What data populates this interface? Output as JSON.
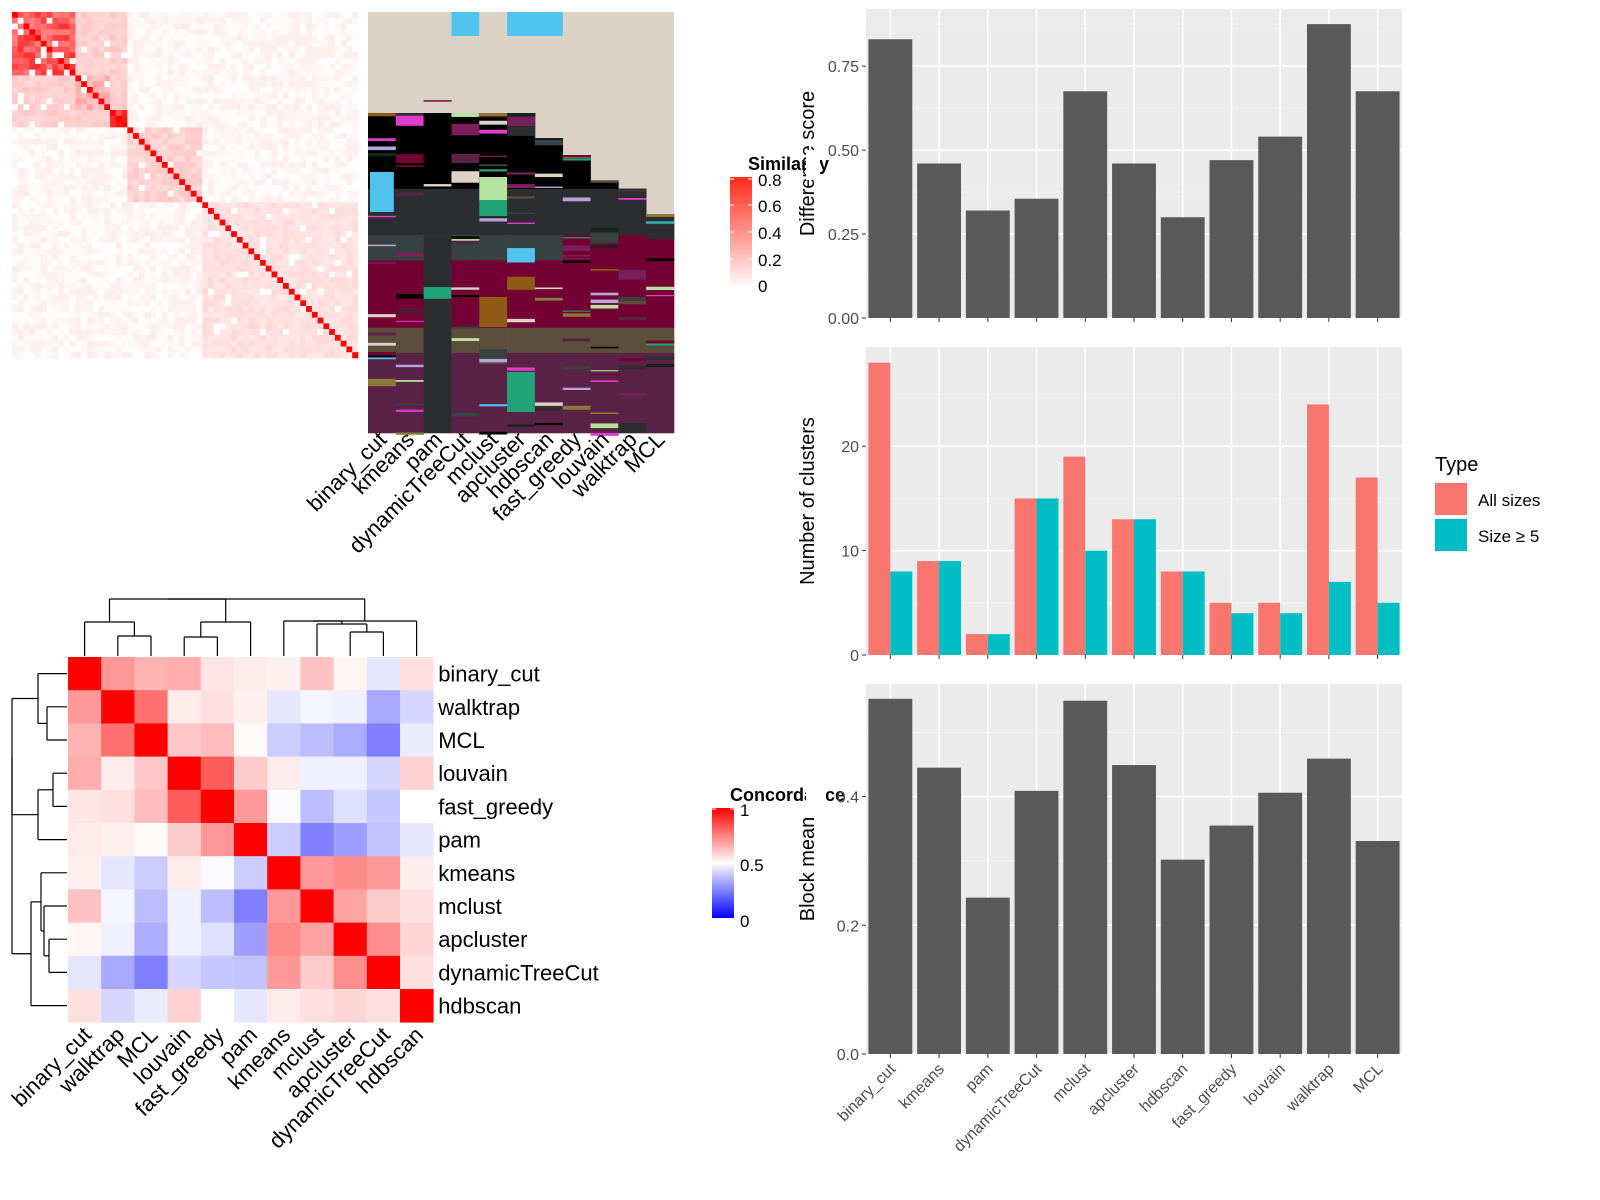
{
  "similarity_legend": {
    "title": "Similarity",
    "ticks": [
      "0.8",
      "0.6",
      "0.4",
      "0.2",
      "0"
    ]
  },
  "concordance_legend": {
    "title": "Concordance",
    "ticks": [
      "1",
      "0.5",
      "0"
    ]
  },
  "chart_data": [
    {
      "type": "heatmap",
      "panel": "similarity-matrix",
      "note_values": "consensus similarity between items, shown as red intensity 0-0.8",
      "legend_title": "Similarity",
      "value_range": [
        0,
        0.8
      ],
      "colors": {
        "low": "#ffffff",
        "high": "#ff0000"
      },
      "blocks": [
        {
          "start": 0.0,
          "end": 0.18,
          "value": 0.55
        },
        {
          "start": 0.18,
          "end": 0.28,
          "value": 0.25
        },
        {
          "start": 0.28,
          "end": 0.33,
          "value": 0.7
        },
        {
          "start": 0.33,
          "end": 0.55,
          "value": 0.15
        },
        {
          "start": 0.55,
          "end": 1.0,
          "value": 0.1
        }
      ]
    },
    {
      "type": "heatmap",
      "panel": "cluster-assignment",
      "methods": [
        "binary_cut",
        "kmeans",
        "pam",
        "dynamicTreeCut",
        "mclust",
        "apcluster",
        "hdbscan",
        "fast_greedy",
        "louvain",
        "walktrap",
        "MCL"
      ]
    },
    {
      "type": "heatmap",
      "panel": "concordance",
      "legend_title": "Concordance",
      "value_range": [
        0,
        1
      ],
      "colors": {
        "low": "#0000ff",
        "mid": "#ffffff",
        "high": "#ff0000"
      },
      "rows": [
        "binary_cut",
        "walktrap",
        "MCL",
        "louvain",
        "fast_greedy",
        "pam",
        "kmeans",
        "mclust",
        "apcluster",
        "dynamicTreeCut",
        "hdbscan"
      ],
      "columns": [
        "binary_cut",
        "walktrap",
        "MCL",
        "louvain",
        "fast_greedy",
        "pam",
        "kmeans",
        "mclust",
        "apcluster",
        "dynamicTreeCut",
        "hdbscan"
      ],
      "values": [
        [
          1.0,
          0.7,
          0.65,
          0.66,
          0.55,
          0.54,
          0.53,
          0.62,
          0.52,
          0.45,
          0.56
        ],
        [
          0.7,
          1.0,
          0.78,
          0.54,
          0.56,
          0.53,
          0.45,
          0.48,
          0.47,
          0.33,
          0.42
        ],
        [
          0.65,
          0.78,
          1.0,
          0.61,
          0.63,
          0.51,
          0.4,
          0.37,
          0.34,
          0.25,
          0.46
        ],
        [
          0.66,
          0.54,
          0.61,
          1.0,
          0.82,
          0.6,
          0.54,
          0.47,
          0.47,
          0.42,
          0.59
        ],
        [
          0.55,
          0.56,
          0.63,
          0.82,
          1.0,
          0.7,
          0.49,
          0.37,
          0.44,
          0.39,
          0.5
        ],
        [
          0.54,
          0.53,
          0.51,
          0.6,
          0.7,
          1.0,
          0.4,
          0.25,
          0.31,
          0.38,
          0.45
        ],
        [
          0.53,
          0.45,
          0.4,
          0.54,
          0.49,
          0.4,
          1.0,
          0.7,
          0.73,
          0.7,
          0.54
        ],
        [
          0.62,
          0.48,
          0.37,
          0.47,
          0.37,
          0.25,
          0.7,
          1.0,
          0.68,
          0.6,
          0.56
        ],
        [
          0.52,
          0.47,
          0.34,
          0.47,
          0.44,
          0.31,
          0.73,
          0.68,
          1.0,
          0.72,
          0.58
        ],
        [
          0.45,
          0.33,
          0.25,
          0.42,
          0.39,
          0.38,
          0.7,
          0.6,
          0.72,
          1.0,
          0.56
        ],
        [
          0.56,
          0.42,
          0.46,
          0.59,
          0.5,
          0.45,
          0.54,
          0.56,
          0.58,
          0.56,
          1.0
        ]
      ]
    },
    {
      "type": "bar",
      "panel": "difference-score",
      "categories": [
        "binary_cut",
        "kmeans",
        "pam",
        "dynamicTreeCut",
        "mclust",
        "apcluster",
        "hdbscan",
        "fast_greedy",
        "louvain",
        "walktrap",
        "MCL"
      ],
      "values": [
        0.83,
        0.46,
        0.32,
        0.355,
        0.675,
        0.46,
        0.3,
        0.47,
        0.54,
        0.875,
        0.675
      ],
      "ylabel": "Difference score",
      "ylim": [
        0,
        0.92
      ],
      "yticks": [
        0,
        0.25,
        0.5,
        0.75
      ],
      "ytick_labels": [
        "0.00",
        "0.25",
        "0.50",
        "0.75"
      ],
      "bar_color": "#595959",
      "grid": true
    },
    {
      "type": "bar",
      "panel": "number-of-clusters",
      "categories": [
        "binary_cut",
        "kmeans",
        "pam",
        "dynamicTreeCut",
        "mclust",
        "apcluster",
        "hdbscan",
        "fast_greedy",
        "louvain",
        "walktrap",
        "MCL"
      ],
      "series": [
        {
          "name": "All sizes",
          "color": "#F8766D",
          "values": [
            28,
            9,
            2,
            15,
            19,
            13,
            8,
            5,
            5,
            24,
            17
          ]
        },
        {
          "name": "Size ≥ 5",
          "color": "#00BFC4",
          "values": [
            8,
            9,
            2,
            15,
            10,
            13,
            8,
            4,
            4,
            7,
            5
          ]
        }
      ],
      "ylabel": "Number of clusters",
      "ylim": [
        0,
        29.5
      ],
      "yticks": [
        0,
        10,
        20
      ],
      "ytick_labels": [
        "0",
        "10",
        "20"
      ],
      "legend": {
        "title": "Type",
        "placement": "right"
      },
      "grid": true
    },
    {
      "type": "bar",
      "panel": "block-mean",
      "categories": [
        "binary_cut",
        "kmeans",
        "pam",
        "dynamicTreeCut",
        "mclust",
        "apcluster",
        "hdbscan",
        "fast_greedy",
        "louvain",
        "walktrap",
        "MCL"
      ],
      "values": [
        0.552,
        0.445,
        0.243,
        0.409,
        0.549,
        0.449,
        0.302,
        0.355,
        0.406,
        0.459,
        0.331
      ],
      "ylabel": "Block mean",
      "ylim": [
        0,
        0.575
      ],
      "yticks": [
        0,
        0.2,
        0.4
      ],
      "ytick_labels": [
        "0.0",
        "0.2",
        "0.4"
      ],
      "bar_color": "#595959",
      "grid": true
    }
  ]
}
